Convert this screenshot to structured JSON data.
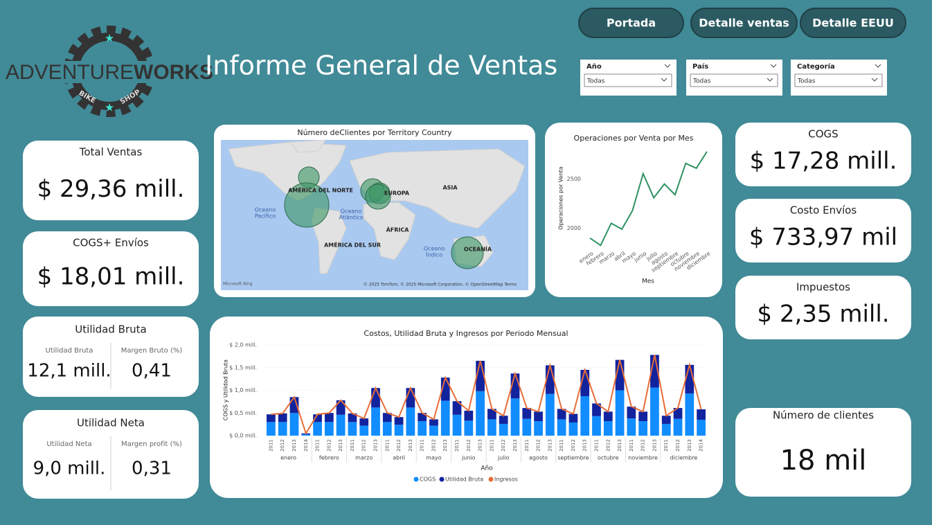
{
  "header": {
    "title": "Informe General de Ventas"
  },
  "logo": {
    "brand_light": "ADVENTURE",
    "brand_bold": "WORKS",
    "tag_left": "BIKE",
    "tag_right": "SHOP"
  },
  "buttons": [
    "Portada",
    "Detalle ventas",
    "Detalle EEUU"
  ],
  "filters": [
    {
      "label": "Año",
      "value": "Todas"
    },
    {
      "label": "País",
      "value": "Todas"
    },
    {
      "label": "Categoría",
      "value": "Todas"
    }
  ],
  "cards": [
    {
      "title": "Total Ventas",
      "value": "$ 29,36 mill."
    },
    {
      "title": "COGS+ Envíos",
      "value": "$ 18,01 mill."
    },
    {
      "title": "COGS",
      "value": "$ 17,28 mill."
    },
    {
      "title": "Costo Envíos",
      "value": "$ 733,97 mil"
    },
    {
      "title": "Impuestos",
      "value": "$ 2,35 mill."
    },
    {
      "title": "Número de clientes",
      "value": "18 mil"
    }
  ],
  "multi_cards": [
    {
      "title": "Utilidad Bruta",
      "fields": [
        {
          "label": "Utilidad Bruta",
          "value": "12,1 mill."
        },
        {
          "label": "Margen Bruto (%)",
          "value": "0,41"
        }
      ]
    },
    {
      "title": "Utilidad Neta",
      "fields": [
        {
          "label": "Utilidad Neta",
          "value": "9,0 mill."
        },
        {
          "label": "Margen profit (%)",
          "value": "0,31"
        }
      ]
    }
  ],
  "map": {
    "title": "Número deClientes por Territory Country",
    "labels": [
      {
        "lines": [
          "AMÉRICA DEL NORTE"
        ]
      },
      {
        "lines": [
          "EUROPA"
        ]
      },
      {
        "lines": [
          "ASIA"
        ]
      },
      {
        "lines": [
          "ÁFRICA"
        ]
      },
      {
        "lines": [
          "AMÉRICA DEL SUR"
        ]
      },
      {
        "lines": [
          "OCEANÍA"
        ]
      },
      {
        "lines": [
          "Oceano",
          "Pacífico"
        ]
      },
      {
        "lines": [
          "Oceano",
          "Atlántico"
        ]
      },
      {
        "lines": [
          "Oceano",
          "Índico"
        ]
      }
    ],
    "provider": "Microsoft Bing",
    "attribution": "© 2025 TomTom, © 2025 Microsoft Corporation, © OpenStreetMap  Terms"
  },
  "chart_data": [
    {
      "type": "line",
      "title": "Operaciones por Venta por Mes",
      "x_label": "Mes",
      "y_label": "Operaciones por Venta",
      "categories": [
        "enero",
        "febrero",
        "marzo",
        "abril",
        "mayo",
        "junio",
        "julio",
        "agosto",
        "septiembre",
        "octubre",
        "noviembre",
        "diciembre"
      ],
      "values": [
        1900,
        1825,
        2050,
        1990,
        2180,
        2555,
        2310,
        2450,
        2340,
        2660,
        2610,
        2780
      ],
      "color": "#2e9160",
      "ylim": [
        1820,
        2800
      ],
      "yticks": [
        2000,
        2500
      ]
    },
    {
      "type": "stacked-bar-line",
      "title": "Costos, Utilidad Bruta y Ingresos por Periodo Mensual",
      "x_label": "Año",
      "y_label": "COGS y Utilidad Bruta",
      "groups": [
        {
          "label": "enero",
          "years": [
            "2011",
            "2012",
            "2013",
            "2014"
          ]
        },
        {
          "label": "febrero",
          "years": [
            "2011",
            "2012",
            "2013"
          ]
        },
        {
          "label": "marzo",
          "years": [
            "2011",
            "2012",
            "2013"
          ]
        },
        {
          "label": "abril",
          "years": [
            "2011",
            "2012",
            "2013"
          ]
        },
        {
          "label": "mayo",
          "years": [
            "2011",
            "2012",
            "2013"
          ]
        },
        {
          "label": "junio",
          "years": [
            "2011",
            "2012",
            "2013"
          ]
        },
        {
          "label": "julio",
          "years": [
            "2011",
            "2012",
            "2013"
          ]
        },
        {
          "label": "agosto",
          "years": [
            "2011",
            "2012",
            "2013"
          ]
        },
        {
          "label": "septiembre",
          "years": [
            "2011",
            "2012",
            "2013"
          ]
        },
        {
          "label": "octubre",
          "years": [
            "2011",
            "2012",
            "2013"
          ]
        },
        {
          "label": "noviembre",
          "years": [
            "2011",
            "2012",
            "2013"
          ]
        },
        {
          "label": "diciembre",
          "years": [
            "2011",
            "2012",
            "2013",
            "2014"
          ]
        }
      ],
      "series": [
        {
          "name": "COGS",
          "color": "#118dff",
          "kind": "bar",
          "values": [
            0.3,
            0.3,
            0.5,
            0.03,
            0.3,
            0.3,
            0.46,
            0.3,
            0.22,
            0.62,
            0.3,
            0.24,
            0.62,
            0.32,
            0.22,
            0.77,
            0.46,
            0.33,
            0.98,
            0.36,
            0.26,
            0.82,
            0.37,
            0.32,
            0.92,
            0.36,
            0.29,
            0.87,
            0.43,
            0.32,
            1.0,
            0.38,
            0.32,
            1.06,
            0.26,
            0.37,
            0.93,
            0.35
          ]
        },
        {
          "name": "Utilidad Bruta",
          "color": "#12239e",
          "kind": "bar",
          "values": [
            0.17,
            0.19,
            0.35,
            0.02,
            0.17,
            0.2,
            0.32,
            0.19,
            0.16,
            0.43,
            0.2,
            0.17,
            0.43,
            0.18,
            0.14,
            0.51,
            0.3,
            0.22,
            0.67,
            0.23,
            0.18,
            0.55,
            0.24,
            0.21,
            0.63,
            0.23,
            0.19,
            0.58,
            0.28,
            0.21,
            0.67,
            0.26,
            0.21,
            0.72,
            0.18,
            0.24,
            0.63,
            0.23
          ]
        },
        {
          "name": "Ingresos",
          "color": "#e66c37",
          "kind": "line",
          "values": [
            0.47,
            0.49,
            0.85,
            0.05,
            0.47,
            0.5,
            0.78,
            0.49,
            0.38,
            1.05,
            0.5,
            0.41,
            1.05,
            0.5,
            0.36,
            1.28,
            0.76,
            0.55,
            1.65,
            0.59,
            0.44,
            1.37,
            0.61,
            0.53,
            1.55,
            0.59,
            0.48,
            1.45,
            0.71,
            0.53,
            1.67,
            0.64,
            0.53,
            1.78,
            0.44,
            0.61,
            1.56,
            0.58
          ]
        }
      ],
      "ylim": [
        0,
        2
      ],
      "yticks": [
        {
          "value": 0,
          "label": "$ 0,0 mill."
        },
        {
          "value": 0.5,
          "label": "$ 0,5 mill."
        },
        {
          "value": 1,
          "label": "$ 1,0 mill."
        },
        {
          "value": 1.5,
          "label": "$ 1,5 mill."
        },
        {
          "value": 2,
          "label": "$ 2,0 mill."
        }
      ]
    }
  ]
}
